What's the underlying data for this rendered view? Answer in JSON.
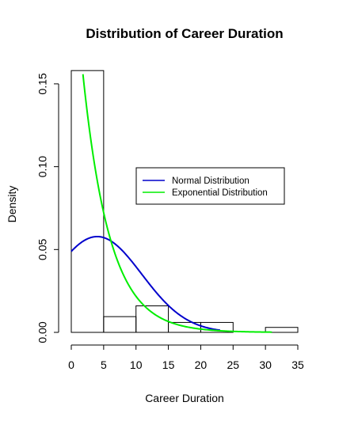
{
  "chart_data": {
    "type": "histogram",
    "title": "Distribution of Career Duration",
    "xlabel": "Career Duration",
    "ylabel": "Density",
    "xlim": [
      0,
      35
    ],
    "ylim": [
      0,
      0.16
    ],
    "x_ticks": [
      0,
      5,
      10,
      15,
      20,
      25,
      30,
      35
    ],
    "y_ticks": [
      0.0,
      0.05,
      0.1,
      0.15
    ],
    "y_tick_labels": [
      "0.00",
      "0.05",
      "0.10",
      "0.15"
    ],
    "bins": [
      {
        "from": 0,
        "to": 5,
        "density": 0.158
      },
      {
        "from": 5,
        "to": 10,
        "density": 0.0095
      },
      {
        "from": 10,
        "to": 15,
        "density": 0.016
      },
      {
        "from": 15,
        "to": 20,
        "density": 0.006
      },
      {
        "from": 20,
        "to": 25,
        "density": 0.006
      },
      {
        "from": 25,
        "to": 30,
        "density": 0.0
      },
      {
        "from": 30,
        "to": 35,
        "density": 0.003
      }
    ],
    "series": [
      {
        "name": "Normal Distribution",
        "color": "#0000cc",
        "distribution": "normal",
        "mean": 4.0,
        "sd": 6.9,
        "x_range": [
          0,
          23
        ]
      },
      {
        "name": "Exponential Distribution",
        "color": "#00ee00",
        "distribution": "exponential",
        "rate": 0.24,
        "scale": 1.0,
        "x_range": [
          1.8,
          31
        ]
      }
    ],
    "legend": {
      "position": "center-right"
    },
    "grid": false
  }
}
